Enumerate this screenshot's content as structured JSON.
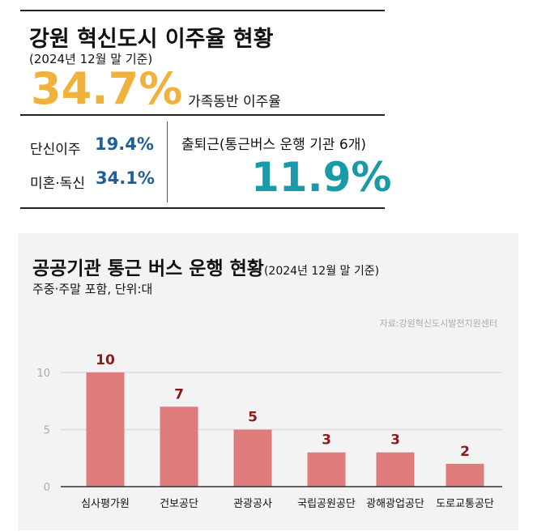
{
  "top": {
    "title": "강원 혁신도시 이주율 현황",
    "subtitle": "(2024년 12월 말 기준)",
    "main_value": "34.7%",
    "main_label": "가족동반 이주율",
    "single_label": "단신이주",
    "single_value": "19.4%",
    "unmarried_label": "미혼·독신",
    "unmarried_value": "34.1%",
    "commute_label": "출퇴근(통근버스 운행 기관 6개)",
    "commute_value": "11.9%",
    "colors": {
      "main": "#f0b23c",
      "blue": "#1f5e96",
      "teal": "#1a9aa8"
    }
  },
  "chart_data": {
    "type": "bar",
    "title": "공공기관 통근 버스 운행 현황",
    "title_note": "(2024년 12월 말 기준)",
    "subtitle": "주중·주말 포함, 단위:대",
    "source": "자료:강원혁신도시발전지원센터",
    "categories": [
      "심사평가원",
      "건보공단",
      "관광공사",
      "국립공원공단",
      "광해광업공단",
      "도로교통공단"
    ],
    "values": [
      10,
      7,
      5,
      3,
      3,
      2
    ],
    "data_labels": [
      "10",
      "7",
      "5",
      "3",
      "3",
      "2"
    ],
    "yticks": [
      "0",
      "5",
      "10"
    ],
    "ylim": [
      0,
      10
    ],
    "grid": true,
    "bar_color": "#de7b7b",
    "label_color": "#8b1a1a"
  }
}
